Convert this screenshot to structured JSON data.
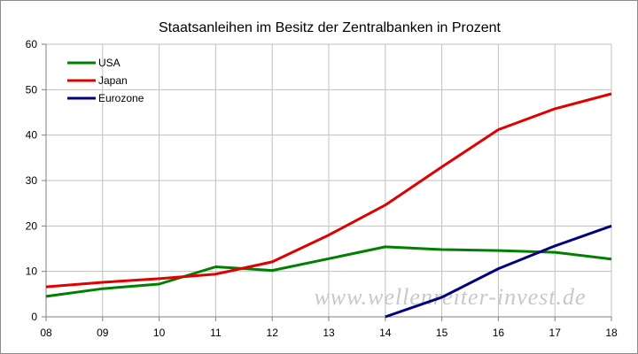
{
  "chart_data": {
    "type": "line",
    "title": "Staatsanleihen im Besitz der Zentralbanken in Prozent",
    "xlabel": "",
    "ylabel": "",
    "categories": [
      "08",
      "09",
      "10",
      "11",
      "12",
      "13",
      "14",
      "15",
      "16",
      "17",
      "18"
    ],
    "ylim": [
      0,
      60
    ],
    "yticks": [
      0,
      10,
      20,
      30,
      40,
      50,
      60
    ],
    "grid": "both",
    "legend_position": "top-left",
    "series": [
      {
        "name": "USA",
        "color": "#008000",
        "values": [
          4.5,
          6.2,
          7.2,
          11.0,
          10.2,
          12.8,
          15.4,
          14.8,
          14.6,
          14.2,
          12.7
        ]
      },
      {
        "name": "Japan",
        "color": "#e00000",
        "values": [
          6.6,
          7.6,
          8.4,
          9.4,
          12.1,
          18.0,
          24.6,
          33.0,
          41.2,
          45.8,
          49.1
        ]
      },
      {
        "name": "Eurozone",
        "color": "#000080",
        "values": [
          null,
          null,
          null,
          null,
          null,
          null,
          0.0,
          4.3,
          10.6,
          15.6,
          20.0
        ]
      }
    ]
  },
  "watermark": "www.wellenreiter-invest.de"
}
